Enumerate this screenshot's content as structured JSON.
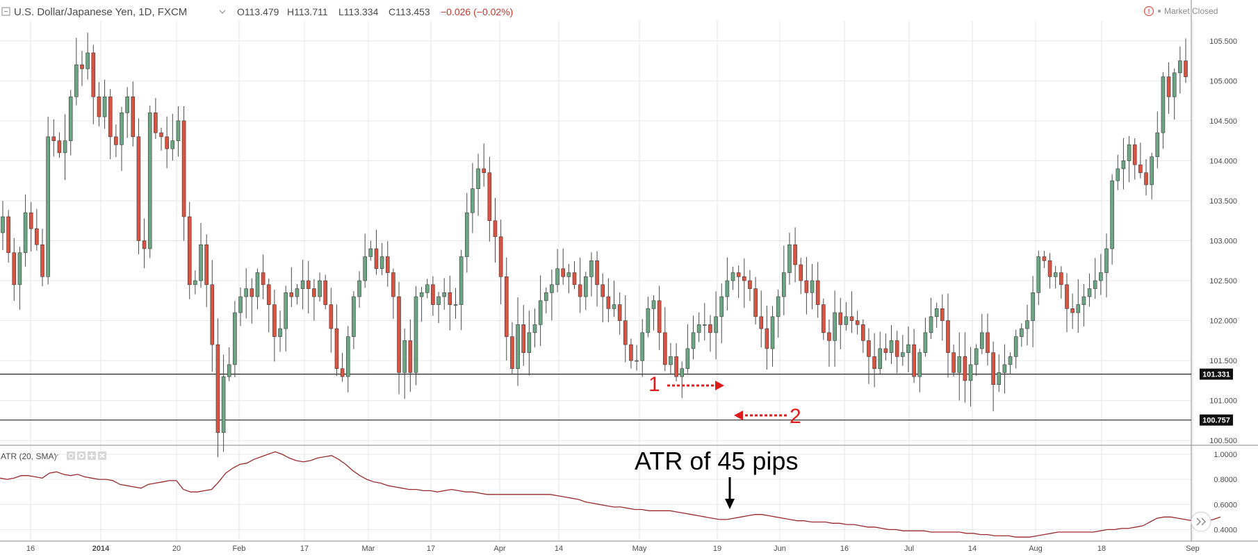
{
  "header": {
    "symbol": "U.S. Dollar/Japanese Yen, 1D, FXCM",
    "open": "O113.479",
    "high": "H113.711",
    "low": "L113.334",
    "close": "C113.453",
    "change": "−0.026 (−0.02%)",
    "market_status": "Market Closed",
    "collapse_icon": "minus-square-icon",
    "dropdown_icon": "chevron-down-icon",
    "alert_icon": "exclamation-circle-icon"
  },
  "indicator": {
    "label": "ATR (20, SMA)",
    "buttons": [
      "eye-icon",
      "gear-icon",
      "plus-icon",
      "close-icon"
    ]
  },
  "annotations": {
    "marker1": "1",
    "marker2": "2",
    "atr_text": "ATR of 45 pips"
  },
  "price_lines": [
    {
      "value": 101.331,
      "label": "101.331"
    },
    {
      "value": 100.757,
      "label": "100.757"
    }
  ],
  "scroll_button_icon": "double-chevron-right-icon",
  "colors": {
    "up": "#6ba583",
    "down": "#d75442",
    "atr_line": "#9c2a2a",
    "grid": "#e6e6e6",
    "annotation": "#e01b1b"
  },
  "chart_data": [
    {
      "type": "candlestick",
      "title": "U.S. Dollar/Japanese Yen, 1D, FXCM",
      "x_tick_labels": [
        "16",
        "2014",
        "20",
        "Feb",
        "17",
        "Mar",
        "17",
        "Apr",
        "14",
        "May",
        "19",
        "Jun",
        "16",
        "Jul",
        "14",
        "Aug",
        "18",
        "Sep"
      ],
      "ylim": [
        100.45,
        105.75
      ],
      "y_ticks": [
        "105.500",
        "105.000",
        "104.500",
        "104.000",
        "103.500",
        "103.000",
        "102.500",
        "102.000",
        "101.500",
        "101.000",
        "100.500"
      ],
      "grid": true,
      "close_series": [
        103.3,
        102.85,
        102.45,
        102.85,
        103.35,
        103.15,
        102.95,
        102.55,
        104.3,
        104.25,
        104.1,
        104.25,
        104.8,
        105.2,
        105.15,
        105.35,
        104.8,
        104.55,
        104.8,
        104.3,
        104.2,
        104.6,
        104.8,
        104.3,
        103.0,
        102.9,
        104.6,
        104.35,
        104.3,
        104.15,
        104.25,
        104.5,
        103.3,
        102.45,
        102.5,
        102.95,
        102.45,
        101.7,
        100.6,
        101.3,
        101.45,
        102.1,
        102.3,
        102.4,
        102.3,
        102.6,
        102.45,
        102.2,
        101.8,
        101.9,
        102.35,
        102.3,
        102.4,
        102.5,
        102.4,
        102.3,
        102.5,
        102.2,
        101.9,
        101.4,
        101.3,
        101.8,
        102.3,
        102.5,
        102.8,
        102.9,
        102.65,
        102.8,
        102.6,
        102.3,
        101.35,
        101.75,
        101.35,
        102.3,
        102.35,
        102.45,
        102.2,
        102.3,
        102.35,
        102.2,
        102.2,
        102.8,
        103.35,
        103.65,
        103.9,
        103.85,
        103.25,
        103.05,
        102.55,
        101.8,
        101.4,
        101.95,
        101.6,
        101.85,
        101.95,
        102.25,
        102.35,
        102.45,
        102.65,
        102.55,
        102.6,
        102.45,
        102.3,
        102.55,
        102.75,
        102.45,
        102.3,
        102.15,
        102.2,
        102.0,
        101.7,
        101.5,
        101.5,
        101.85,
        102.15,
        102.25,
        101.85,
        101.45,
        101.55,
        101.3,
        101.4,
        101.65,
        101.85,
        101.95,
        101.95,
        101.85,
        102.05,
        102.3,
        102.5,
        102.6,
        102.55,
        102.5,
        102.4,
        102.05,
        101.9,
        101.65,
        102.05,
        102.3,
        102.6,
        102.95,
        102.7,
        102.5,
        102.35,
        102.5,
        102.2,
        101.85,
        101.75,
        102.1,
        101.95,
        102.05,
        102.0,
        101.95,
        101.75,
        101.55,
        101.4,
        101.65,
        101.6,
        101.75,
        101.55,
        101.6,
        101.7,
        101.3,
        101.6,
        101.85,
        102.05,
        102.15,
        102.0,
        101.6,
        101.35,
        101.55,
        101.25,
        101.45,
        101.65,
        101.85,
        101.6,
        101.2,
        101.35,
        101.45,
        101.55,
        101.8,
        101.9,
        102.0,
        102.35,
        102.8,
        102.75,
        102.55,
        102.6,
        102.45,
        102.15,
        102.1,
        102.2,
        102.3,
        102.4,
        102.5,
        102.6,
        102.9,
        103.75,
        103.9,
        104.0,
        104.2,
        103.95,
        103.85,
        103.7,
        104.05,
        104.35,
        105.05,
        104.8,
        105.1,
        105.25,
        105.05
      ],
      "marked_levels": [
        101.331,
        100.757
      ]
    },
    {
      "type": "line",
      "title": "ATR (20, SMA)",
      "ylim": [
        0.33,
        1.05
      ],
      "y_ticks": [
        "1.0000",
        "0.8000",
        "0.6000",
        "0.4000"
      ],
      "series": [
        {
          "values": [
            0.81,
            0.8,
            0.81,
            0.83,
            0.83,
            0.82,
            0.81,
            0.85,
            0.86,
            0.84,
            0.83,
            0.84,
            0.82,
            0.81,
            0.8,
            0.8,
            0.79,
            0.76,
            0.75,
            0.74,
            0.73,
            0.76,
            0.77,
            0.78,
            0.79,
            0.79,
            0.72,
            0.7,
            0.7,
            0.71,
            0.72,
            0.78,
            0.85,
            0.89,
            0.92,
            0.93,
            0.96,
            0.98,
            1.0,
            1.02,
            1.0,
            0.97,
            0.95,
            0.94,
            0.95,
            0.97,
            0.98,
            0.99,
            0.96,
            0.92,
            0.87,
            0.83,
            0.8,
            0.78,
            0.77,
            0.75,
            0.74,
            0.73,
            0.72,
            0.72,
            0.71,
            0.71,
            0.7,
            0.71,
            0.72,
            0.71,
            0.7,
            0.7,
            0.69,
            0.68,
            0.68,
            0.68,
            0.68,
            0.68,
            0.68,
            0.68,
            0.68,
            0.68,
            0.68,
            0.67,
            0.66,
            0.65,
            0.64,
            0.62,
            0.61,
            0.6,
            0.59,
            0.58,
            0.58,
            0.57,
            0.56,
            0.56,
            0.55,
            0.55,
            0.55,
            0.55,
            0.54,
            0.53,
            0.52,
            0.51,
            0.5,
            0.49,
            0.48,
            0.48,
            0.49,
            0.5,
            0.51,
            0.52,
            0.52,
            0.51,
            0.5,
            0.49,
            0.48,
            0.47,
            0.47,
            0.46,
            0.46,
            0.46,
            0.45,
            0.45,
            0.44,
            0.44,
            0.43,
            0.42,
            0.42,
            0.41,
            0.4,
            0.4,
            0.39,
            0.39,
            0.39,
            0.39,
            0.38,
            0.38,
            0.38,
            0.38,
            0.38,
            0.37,
            0.37,
            0.36,
            0.36,
            0.35,
            0.35,
            0.35,
            0.34,
            0.34,
            0.34,
            0.35,
            0.36,
            0.37,
            0.38,
            0.38,
            0.38,
            0.38,
            0.38,
            0.38,
            0.39,
            0.4,
            0.4,
            0.41,
            0.41,
            0.42,
            0.43,
            0.46,
            0.49,
            0.5,
            0.5,
            0.49,
            0.48,
            0.47,
            0.47,
            0.47,
            0.48,
            0.5
          ]
        }
      ]
    }
  ]
}
